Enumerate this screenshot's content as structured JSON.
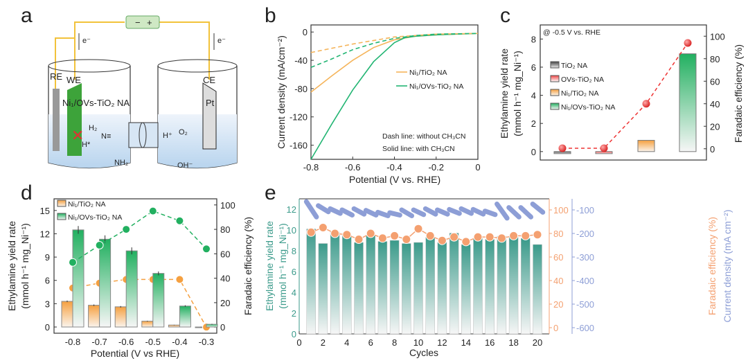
{
  "panel_labels": [
    "a",
    "b",
    "c",
    "d",
    "e"
  ],
  "diagram": {
    "re": "RE",
    "we": "WE",
    "ce": "CE",
    "catalyst": "Ni₁/OVs-TiO₂ NA",
    "pt": "Pt",
    "e_left": "e⁻",
    "e_right": "e⁻",
    "h2": "H₂",
    "hstar": "H*",
    "n": "N≡",
    "nh2": "NH₂",
    "hplus": "H⁺",
    "o2": "O₂",
    "oh": "OH⁻",
    "minus": "−",
    "plus": "+"
  },
  "chart_data": [
    {
      "id": "b",
      "type": "line",
      "xlabel": "Potential (V vs. RHE)",
      "ylabel": "Current density (mA/cm⁻²)",
      "xlim": [
        -0.8,
        0.0
      ],
      "ylim": [
        -180,
        10
      ],
      "xticks": [
        -0.8,
        -0.6,
        -0.4,
        -0.2,
        0.0
      ],
      "yticks": [
        0,
        -40,
        -80,
        -120,
        -160
      ],
      "legend": [
        "Ni₁/TiO₂ NA",
        "Ni₁/OVs-TiO₂ NA"
      ],
      "notes": [
        "Dash line: without CH₃CN",
        "Solid line: with CH₃CN"
      ],
      "colors": {
        "orange": "#f5b45a",
        "green": "#22b573"
      },
      "series": [
        {
          "name": "Ni₁/TiO₂ NA (with CH₃CN)",
          "style": "solid",
          "color": "orange",
          "x": [
            -0.8,
            -0.7,
            -0.6,
            -0.5,
            -0.4,
            -0.3,
            -0.2,
            0
          ],
          "y": [
            -85,
            -62,
            -40,
            -22,
            -11,
            -6,
            -4,
            -2
          ]
        },
        {
          "name": "Ni₁/OVs-TiO₂ NA (with CH₃CN)",
          "style": "solid",
          "color": "green",
          "x": [
            -0.8,
            -0.7,
            -0.6,
            -0.5,
            -0.4,
            -0.35,
            -0.3,
            -0.2,
            0
          ],
          "y": [
            -180,
            -130,
            -82,
            -42,
            -15,
            -8,
            -6,
            -4,
            -2
          ]
        },
        {
          "name": "Ni₁/TiO₂ NA (without CH₃CN)",
          "style": "dash",
          "color": "orange",
          "x": [
            -0.8,
            -0.6,
            -0.4,
            -0.2,
            0
          ],
          "y": [
            -29,
            -17,
            -7,
            -3,
            -2
          ]
        },
        {
          "name": "Ni₁/OVs-TiO₂ NA (without CH₃CN)",
          "style": "dash",
          "color": "green",
          "x": [
            -0.8,
            -0.7,
            -0.6,
            -0.5,
            -0.4,
            -0.3,
            -0.2,
            0
          ],
          "y": [
            -50,
            -38,
            -25,
            -16,
            -9,
            -5,
            -3,
            -2
          ]
        }
      ]
    },
    {
      "id": "c",
      "type": "bar",
      "annotation": "@ -0.5 V vs. RHE",
      "ylabel": "Ethylamine yield rate",
      "ylabel2": "(mmol h⁻¹ mg_Ni⁻¹)",
      "y2label": "Faradaic efficiency (%)",
      "ylim": [
        -0.6,
        9
      ],
      "y2lim": [
        -10,
        110
      ],
      "yticks": [
        0,
        2,
        4,
        6,
        8
      ],
      "y2ticks": [
        0,
        20,
        40,
        60,
        80,
        100
      ],
      "categories": [
        "TiO₂ NA",
        "OVs-TiO₂ NA",
        "Ni₁/TiO₂ NA",
        "Ni₁/OVs-TiO₂ NA"
      ],
      "bar_colors": [
        "#555555",
        "#ee4444",
        "#f5a040",
        "#22b060"
      ],
      "yield": [
        0.0,
        0.0,
        0.8,
        6.95
      ],
      "fe": [
        0.5,
        0.5,
        40,
        94
      ]
    },
    {
      "id": "d",
      "type": "bar",
      "xlabel": "Potential (V vs RHE)",
      "ylabel": "Ethylamine yield rate",
      "ylabel2": "(mmol h⁻¹ mg_Ni⁻¹)",
      "y2label": "Faradaic efficiency (%)",
      "ylim": [
        -0.8,
        16.5
      ],
      "y2lim": [
        -5,
        105
      ],
      "yticks": [
        0,
        3,
        6,
        9,
        12,
        15
      ],
      "y2ticks": [
        0,
        20,
        40,
        60,
        80,
        100
      ],
      "categories": [
        "-0.8",
        "-0.7",
        "-0.6",
        "-0.5",
        "-0.4",
        "-0.3"
      ],
      "series": [
        {
          "name": "Ni₁/TiO₂ NA",
          "color": "#f5a040",
          "yield": [
            3.3,
            2.8,
            2.6,
            0.75,
            0.25,
            0.0
          ],
          "err": [
            0.1,
            0.1,
            0.1,
            0.05,
            0.03,
            0.02
          ],
          "fe": [
            32,
            36,
            39,
            39,
            39,
            0
          ]
        },
        {
          "name": "Ni₁/OVs-TiO₂ NA",
          "color": "#22b060",
          "yield": [
            12.5,
            11.3,
            9.8,
            6.9,
            2.7,
            0.35
          ],
          "err": [
            0.5,
            0.5,
            0.45,
            0.25,
            0.1,
            0.05
          ],
          "fe": [
            53,
            67,
            80,
            95,
            87,
            64
          ]
        }
      ]
    },
    {
      "id": "e",
      "type": "bar",
      "xlabel": "Cycles",
      "ylabel": "Ethylamine yield rate",
      "ylabel2": "(mmol h⁻¹ mg_Ni⁻¹)",
      "y2label": "Faradaic efficiency (%)",
      "y3label": "Current density (mA cm⁻²)",
      "xlim": [
        0,
        20.8
      ],
      "ylim": [
        0,
        13
      ],
      "y2lim": [
        -2,
        108
      ],
      "y3lim": [
        -610,
        -50
      ],
      "xticks": [
        0,
        2,
        4,
        6,
        8,
        10,
        12,
        14,
        16,
        18,
        20
      ],
      "yticks": [
        0,
        2,
        4,
        6,
        8,
        10,
        12
      ],
      "y2ticks": [
        0,
        20,
        40,
        60,
        80,
        100
      ],
      "y3ticks": [
        -100,
        -200,
        -300,
        -400,
        -500,
        -600
      ],
      "colors": {
        "yield": "#3a9a8a",
        "fe": "#f4a070",
        "current": "#8d9ed6"
      },
      "cycles": [
        1,
        2,
        3,
        4,
        5,
        6,
        7,
        8,
        9,
        10,
        11,
        12,
        13,
        14,
        15,
        16,
        17,
        18,
        19,
        20
      ],
      "yield": [
        10.1,
        8.7,
        9.8,
        9.5,
        8.8,
        9.5,
        8.9,
        9.0,
        8.7,
        8.8,
        9.3,
        8.8,
        9.7,
        8.6,
        9.2,
        9.1,
        9.4,
        9.3,
        9.2,
        8.6
      ],
      "fe": [
        81,
        85,
        80,
        79,
        75,
        80,
        76,
        78,
        75,
        84,
        78,
        74,
        77,
        73,
        77,
        77,
        76,
        78,
        78,
        79
      ],
      "current_start": [
        -65,
        -82,
        -95,
        -100,
        -95,
        -102,
        -110,
        -112,
        -100,
        -100,
        -95,
        -100,
        -98,
        -95,
        -98,
        -105,
        -75,
        -90,
        -90,
        -75
      ],
      "current_end": [
        -130,
        -108,
        -115,
        -122,
        -118,
        -122,
        -125,
        -122,
        -125,
        -120,
        -118,
        -118,
        -115,
        -115,
        -118,
        -120,
        -135,
        -130,
        -130,
        -110
      ]
    }
  ]
}
